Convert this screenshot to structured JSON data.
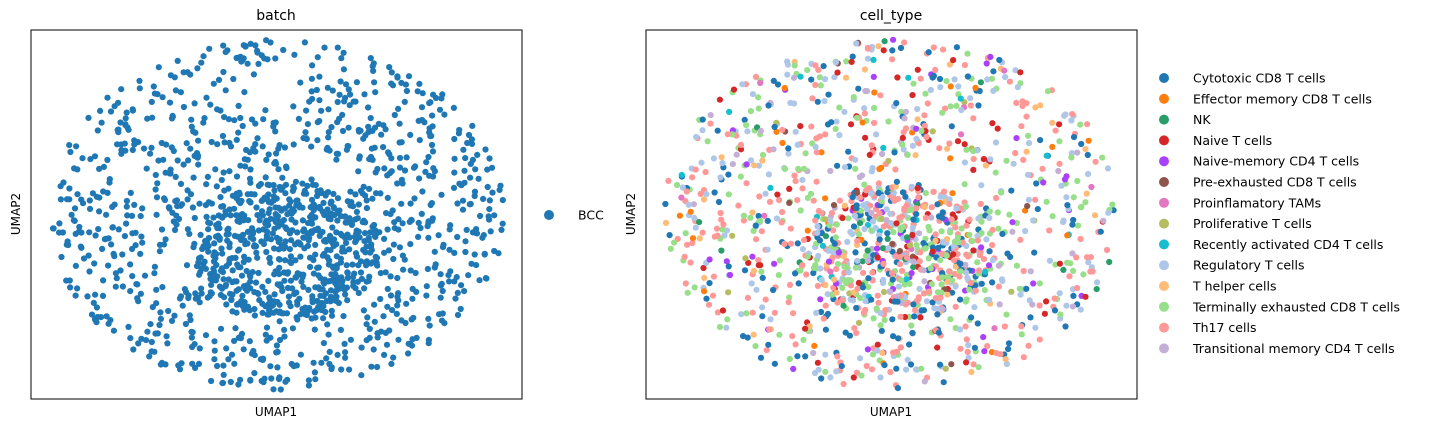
{
  "chart_data": [
    {
      "type": "scatter",
      "title": "batch",
      "xlabel": "UMAP1",
      "ylabel": "UMAP2",
      "grid": false,
      "axis_ticks": false,
      "legend_position": "right",
      "point_count": 1500,
      "series": [
        {
          "name": "BCC",
          "color": "#1f77b4"
        }
      ]
    },
    {
      "type": "scatter",
      "title": "cell_type",
      "xlabel": "UMAP1",
      "ylabel": "UMAP2",
      "grid": false,
      "axis_ticks": false,
      "legend_position": "right",
      "point_count": 1500,
      "series": [
        {
          "name": "Cytotoxic CD8 T cells",
          "color": "#1f77b4",
          "weight": 0.16
        },
        {
          "name": "Effector memory CD8 T cells",
          "color": "#ff7f0e",
          "weight": 0.02
        },
        {
          "name": "NK",
          "color": "#279e68",
          "weight": 0.015
        },
        {
          "name": "Naive T cells",
          "color": "#d62728",
          "weight": 0.05
        },
        {
          "name": "Naive-memory CD4 T cells",
          "color": "#aa40fc",
          "weight": 0.04
        },
        {
          "name": "Pre-exhausted CD8 T cells",
          "color": "#8c564b",
          "weight": 0.01
        },
        {
          "name": "Proinflamatory TAMs",
          "color": "#e377c2",
          "weight": 0.01
        },
        {
          "name": "Proliferative T cells",
          "color": "#b5bd61",
          "weight": 0.01
        },
        {
          "name": "Recently activated CD4 T cells",
          "color": "#17becf",
          "weight": 0.02
        },
        {
          "name": "Regulatory T cells",
          "color": "#aec7e8",
          "weight": 0.17
        },
        {
          "name": "T helper cells",
          "color": "#ffbb78",
          "weight": 0.04
        },
        {
          "name": "Terminally exhausted CD8 T cells",
          "color": "#98df8a",
          "weight": 0.17
        },
        {
          "name": "Th17 cells",
          "color": "#ff9896",
          "weight": 0.25
        },
        {
          "name": "Transitional memory CD4 T cells",
          "color": "#c5b0d5",
          "weight": 0.035
        }
      ]
    }
  ]
}
